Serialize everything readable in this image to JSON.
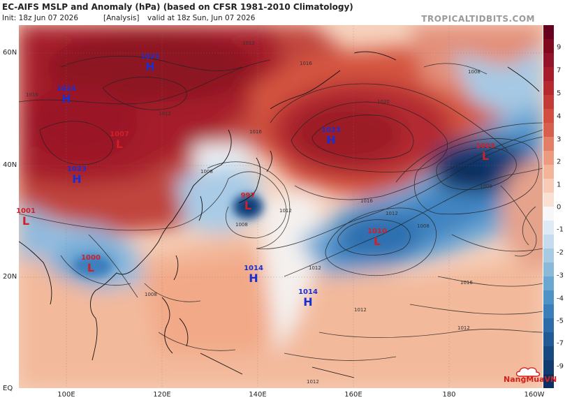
{
  "header": {
    "title": "EC-AIFS MSLP and Anomaly (hPa) (based on CFSR 1981-2010 Climatology)",
    "init": "Init: 18z Jun 07 2026",
    "analysis": "[Analysis]",
    "valid": "valid at 18z Sun, Jun 07 2026"
  },
  "brand": "TROPICALTIDBITS.COM",
  "watermark": "NangMuaVN",
  "lat_labels": [
    "60N",
    "40N",
    "20N",
    "EQ"
  ],
  "lon_labels": [
    "100E",
    "120E",
    "140E",
    "160E",
    "180",
    "160W"
  ],
  "colorbar": {
    "labels": [
      "9",
      "7",
      "5",
      "4",
      "3",
      "2",
      "1",
      "0",
      "-1",
      "-2",
      "-3",
      "-4",
      "-5",
      "-7",
      "-9"
    ],
    "colors": {
      "strong_positive": "#7f0a1e",
      "positive": "#d6604d",
      "neutral": "#f7f7f7",
      "negative": "#4393c3",
      "strong_negative": "#0b2e63"
    }
  },
  "isobar_labels": [
    "1008",
    "1012",
    "1016",
    "1020"
  ],
  "pressure_centers": [
    {
      "type": "H",
      "value": "1021"
    },
    {
      "type": "H",
      "value": "1024"
    },
    {
      "type": "L",
      "value": "1007"
    },
    {
      "type": "H",
      "value": "1023"
    },
    {
      "type": "L",
      "value": "1001"
    },
    {
      "type": "L",
      "value": "1000"
    },
    {
      "type": "L",
      "value": "997"
    },
    {
      "type": "H",
      "value": "1023"
    },
    {
      "type": "L",
      "value": "1003"
    },
    {
      "type": "L",
      "value": "1010"
    },
    {
      "type": "H",
      "value": "1014"
    },
    {
      "type": "H",
      "value": "1014"
    }
  ]
}
